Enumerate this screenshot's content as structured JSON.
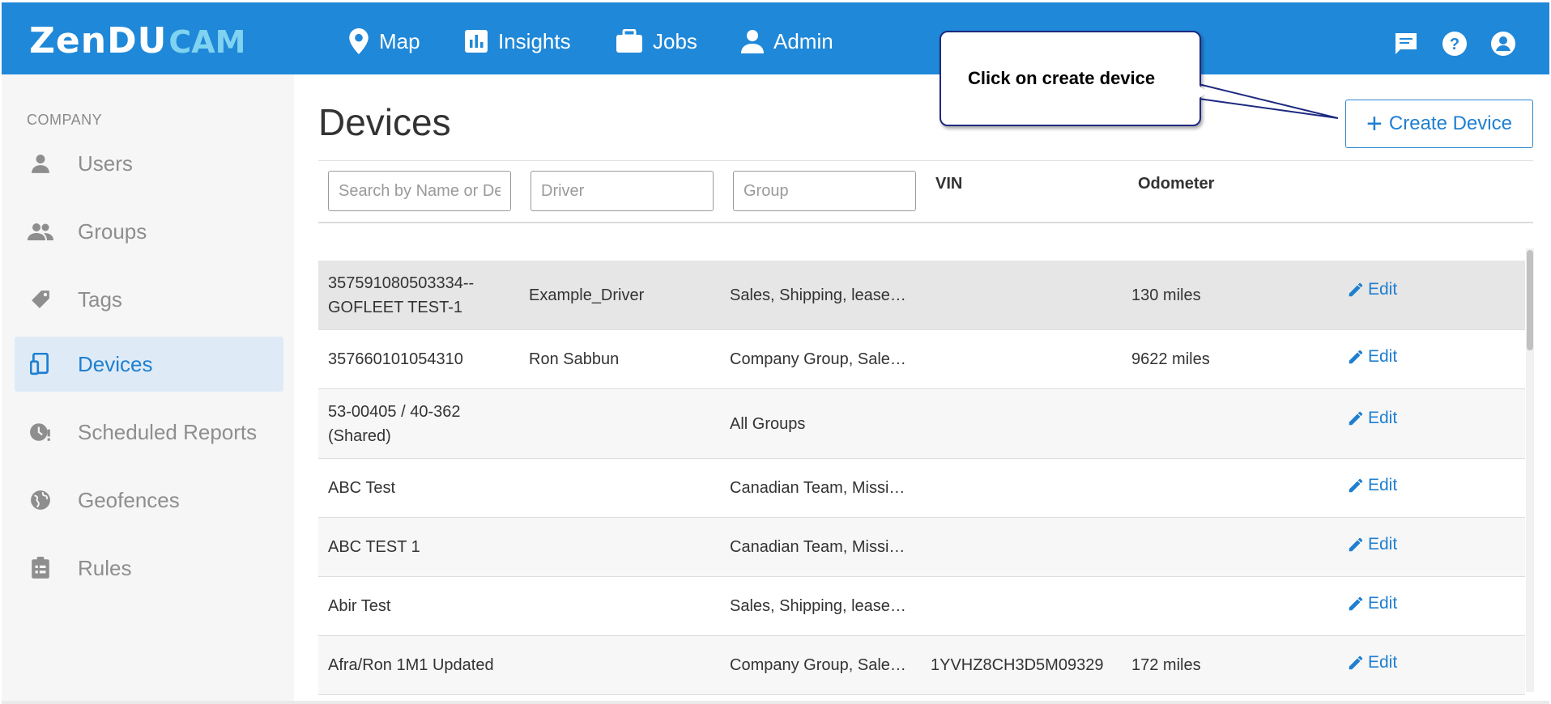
{
  "brand": {
    "logo_main": "ZenDU",
    "logo_accent": "CAM"
  },
  "nav": [
    {
      "label": "Map",
      "icon": "map-pin-icon"
    },
    {
      "label": "Insights",
      "icon": "insights-chart-icon"
    },
    {
      "label": "Jobs",
      "icon": "briefcase-icon"
    },
    {
      "label": "Admin",
      "icon": "person-icon"
    }
  ],
  "top_icons": [
    "chat-icon",
    "help-icon",
    "account-icon"
  ],
  "sidebar": {
    "section": "COMPANY",
    "items": [
      {
        "label": "Users",
        "icon": "user-icon",
        "active": false
      },
      {
        "label": "Groups",
        "icon": "groups-icon",
        "active": false
      },
      {
        "label": "Tags",
        "icon": "tag-icon",
        "active": false
      },
      {
        "label": "Devices",
        "icon": "devices-icon",
        "active": true
      },
      {
        "label": "Scheduled Reports",
        "icon": "schedule-icon",
        "active": false
      },
      {
        "label": "Geofences",
        "icon": "globe-icon",
        "active": false
      },
      {
        "label": "Rules",
        "icon": "clipboard-icon",
        "active": false
      }
    ]
  },
  "main": {
    "title": "Devices",
    "create_button": "Create Device",
    "filters": {
      "search_placeholder": "Search by Name or Device",
      "driver_placeholder": "Driver",
      "group_placeholder": "Group"
    },
    "columns": {
      "vin": "VIN",
      "odometer": "Odometer"
    },
    "edit_label": "Edit",
    "rows": [
      {
        "name": "357591080503334--GOFLEET TEST-1",
        "driver": "Example_Driver",
        "groups": "Sales, Shipping, lease…",
        "vin": "",
        "odometer": "130 miles"
      },
      {
        "name": "357660101054310",
        "driver": "Ron Sabbun",
        "groups": "Company Group, Sale…",
        "vin": "",
        "odometer": "9622 miles"
      },
      {
        "name": "53-00405 / 40-362 (Shared)",
        "driver": "",
        "groups": "All Groups",
        "vin": "",
        "odometer": ""
      },
      {
        "name": "ABC Test",
        "driver": "",
        "groups": "Canadian Team, Missi…",
        "vin": "",
        "odometer": ""
      },
      {
        "name": "ABC TEST 1",
        "driver": "",
        "groups": "Canadian Team, Missi…",
        "vin": "",
        "odometer": ""
      },
      {
        "name": "Abir Test",
        "driver": "",
        "groups": "Sales, Shipping, lease…",
        "vin": "",
        "odometer": ""
      },
      {
        "name": "Afra/Ron 1M1 Updated",
        "driver": "",
        "groups": "Company Group, Sale…",
        "vin": "1YVHZ8CH3D5M09329",
        "odometer": "172 miles"
      }
    ]
  },
  "callout": {
    "text": "Click on create device"
  },
  "colors": {
    "topbar": "#2088d8",
    "accent": "#1f7fd0",
    "active_bg": "#deebf7",
    "hover_row": "#e6e6e6",
    "callout_border": "#1d2a80"
  }
}
